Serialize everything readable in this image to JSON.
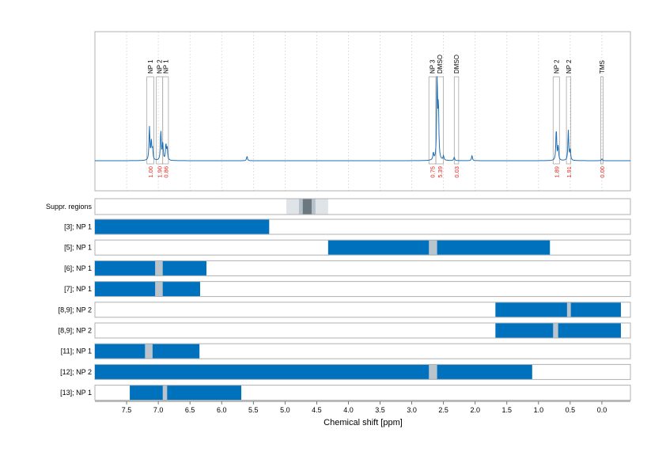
{
  "chart_data": {
    "type": "line",
    "xlabel": "Chemical shift [ppm]",
    "xlim": [
      8.0,
      -0.45
    ],
    "x_ticks": [
      "7.5",
      "7.0",
      "6.5",
      "6.0",
      "5.5",
      "5.0",
      "4.5",
      "4.0",
      "3.5",
      "3.0",
      "2.5",
      "2.0",
      "1.5",
      "1.0",
      "0.5",
      "0.0"
    ],
    "grid": true,
    "spectrum": {
      "baseline_color": "#1f6fb4",
      "peaks": [
        {
          "ppm": 7.14,
          "height": 0.38
        },
        {
          "ppm": 7.11,
          "height": 0.22
        },
        {
          "ppm": 7.09,
          "height": 0.12
        },
        {
          "ppm": 6.96,
          "height": 0.34
        },
        {
          "ppm": 6.93,
          "height": 0.2
        },
        {
          "ppm": 6.88,
          "height": 0.18
        },
        {
          "ppm": 6.86,
          "height": 0.14
        },
        {
          "ppm": 5.6,
          "height": 0.05
        },
        {
          "ppm": 2.66,
          "height": 0.08
        },
        {
          "ppm": 2.6,
          "height": 0.92
        },
        {
          "ppm": 2.58,
          "height": 0.6
        },
        {
          "ppm": 2.5,
          "height": 0.05
        },
        {
          "ppm": 2.33,
          "height": 0.04
        },
        {
          "ppm": 2.05,
          "height": 0.06
        },
        {
          "ppm": 0.72,
          "height": 0.36
        },
        {
          "ppm": 0.69,
          "height": 0.16
        },
        {
          "ppm": 0.53,
          "height": 0.34
        },
        {
          "ppm": 0.5,
          "height": 0.12
        },
        {
          "ppm": 0.0,
          "height": 0.02
        }
      ]
    },
    "peak_groups": [
      {
        "label": "NP 1",
        "from": 7.18,
        "to": 7.07,
        "integral": "1.00",
        "label_top": 84
      },
      {
        "label": "NP 2",
        "from": 7.03,
        "to": 6.93,
        "integral": "1.90",
        "label_top": 84
      },
      {
        "label": "NP 1",
        "from": 6.93,
        "to": 6.84,
        "integral": "0.86",
        "label_top": 84
      },
      {
        "label": "NP 3",
        "from": 2.73,
        "to": 2.62,
        "integral": "0.75",
        "label_top": 84
      },
      {
        "label": "DMSO",
        "from": 2.62,
        "to": 2.5,
        "integral": "5.39",
        "label_top": 84
      },
      {
        "label": "DMSO",
        "from": 2.33,
        "to": 2.26,
        "integral": "0.03",
        "label_top": 84
      },
      {
        "label": "NP 2",
        "from": 0.77,
        "to": 0.67,
        "integral": "1.89",
        "label_top": 84
      },
      {
        "label": "NP 2",
        "from": 0.56,
        "to": 0.49,
        "integral": "1.91",
        "label_top": 84
      },
      {
        "label": "TMS",
        "from": 0.02,
        "to": -0.02,
        "integral": "0.00",
        "label_top": 84
      }
    ],
    "suppressed_regions": {
      "label": "Suppr. regions",
      "bands": [
        {
          "from": 4.98,
          "to": 4.32,
          "level": 1
        },
        {
          "from": 4.78,
          "to": 4.52,
          "level": 2
        },
        {
          "from": 4.72,
          "to": 4.58,
          "level": 3
        }
      ]
    },
    "rows": [
      {
        "label": "[3]; NP 1",
        "ranges": [
          [
            8.0,
            5.25
          ]
        ],
        "gaps": []
      },
      {
        "label": "[5]; NP 1",
        "ranges": [
          [
            4.32,
            0.82
          ]
        ],
        "gaps": [
          [
            2.73,
            2.6
          ]
        ]
      },
      {
        "label": "[6]; NP 1",
        "ranges": [
          [
            8.0,
            6.24
          ]
        ],
        "gaps": [
          [
            7.05,
            6.93
          ]
        ]
      },
      {
        "label": "[7]; NP 1",
        "ranges": [
          [
            8.0,
            6.34
          ]
        ],
        "gaps": [
          [
            7.05,
            6.93
          ]
        ]
      },
      {
        "label": "[8,9]; NP 2",
        "ranges": [
          [
            1.68,
            -0.3
          ]
        ],
        "gaps": [
          [
            0.55,
            0.49
          ]
        ]
      },
      {
        "label": "[8,9]; NP 2",
        "ranges": [
          [
            1.68,
            -0.3
          ]
        ],
        "gaps": [
          [
            0.77,
            0.69
          ]
        ]
      },
      {
        "label": "[11]; NP 1",
        "ranges": [
          [
            8.0,
            6.35
          ]
        ],
        "gaps": [
          [
            7.21,
            7.09
          ]
        ]
      },
      {
        "label": "[12]; NP 2",
        "ranges": [
          [
            8.0,
            1.1
          ]
        ],
        "gaps": [
          [
            2.73,
            2.6
          ]
        ]
      },
      {
        "label": "[13]; NP 1",
        "ranges": [
          [
            7.45,
            5.69
          ]
        ],
        "gaps": [
          [
            6.93,
            6.86
          ]
        ]
      }
    ],
    "colors": {
      "bar": "#0072bd",
      "gap": "#b9c4cc",
      "supp_1": "#dfe4e8",
      "supp_2": "#b7c1c9",
      "supp_3": "#6b7880",
      "integral": "#e8211b",
      "grid": "#c8c8c8",
      "panel_border": "#b0b0b0"
    }
  }
}
